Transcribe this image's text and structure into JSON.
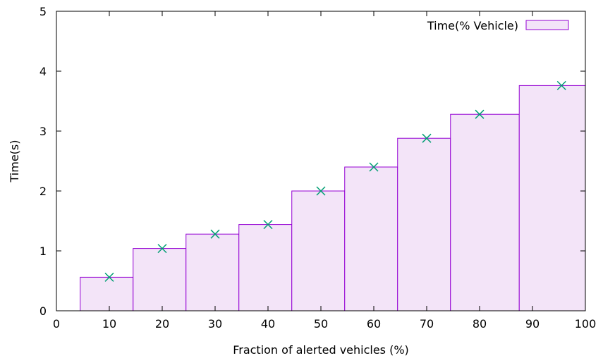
{
  "chart_data": {
    "type": "bar",
    "xlabel": "Fraction of alerted vehicles (%)",
    "ylabel": "Time(s)",
    "xlim": [
      0,
      100
    ],
    "ylim": [
      0,
      5
    ],
    "x_ticks": [
      "0",
      "10",
      "20",
      "30",
      "40",
      "50",
      "60",
      "70",
      "80",
      "90",
      "100"
    ],
    "y_ticks": [
      "0",
      "1",
      "2",
      "3",
      "4",
      "5"
    ],
    "legend": {
      "label": "Time(% Vehicle)",
      "placement": "top-right"
    },
    "bar_fill_color": "#f3e4f8",
    "bar_edge_color": "#9400d3",
    "marker_color": "#009e73",
    "bars": [
      {
        "x_start": 4.5,
        "x_end": 14.5,
        "value": 0.56,
        "marker_x": 10
      },
      {
        "x_start": 14.5,
        "x_end": 24.5,
        "value": 1.04,
        "marker_x": 20
      },
      {
        "x_start": 24.5,
        "x_end": 34.5,
        "value": 1.28,
        "marker_x": 30
      },
      {
        "x_start": 34.5,
        "x_end": 44.5,
        "value": 1.44,
        "marker_x": 40
      },
      {
        "x_start": 44.5,
        "x_end": 54.5,
        "value": 2.0,
        "marker_x": 50
      },
      {
        "x_start": 54.5,
        "x_end": 64.5,
        "value": 2.4,
        "marker_x": 60
      },
      {
        "x_start": 64.5,
        "x_end": 74.5,
        "value": 2.88,
        "marker_x": 70
      },
      {
        "x_start": 74.5,
        "x_end": 87.5,
        "value": 3.28,
        "marker_x": 80
      },
      {
        "x_start": 87.5,
        "x_end": 100,
        "value": 3.76,
        "marker_x": 95.5
      }
    ]
  }
}
